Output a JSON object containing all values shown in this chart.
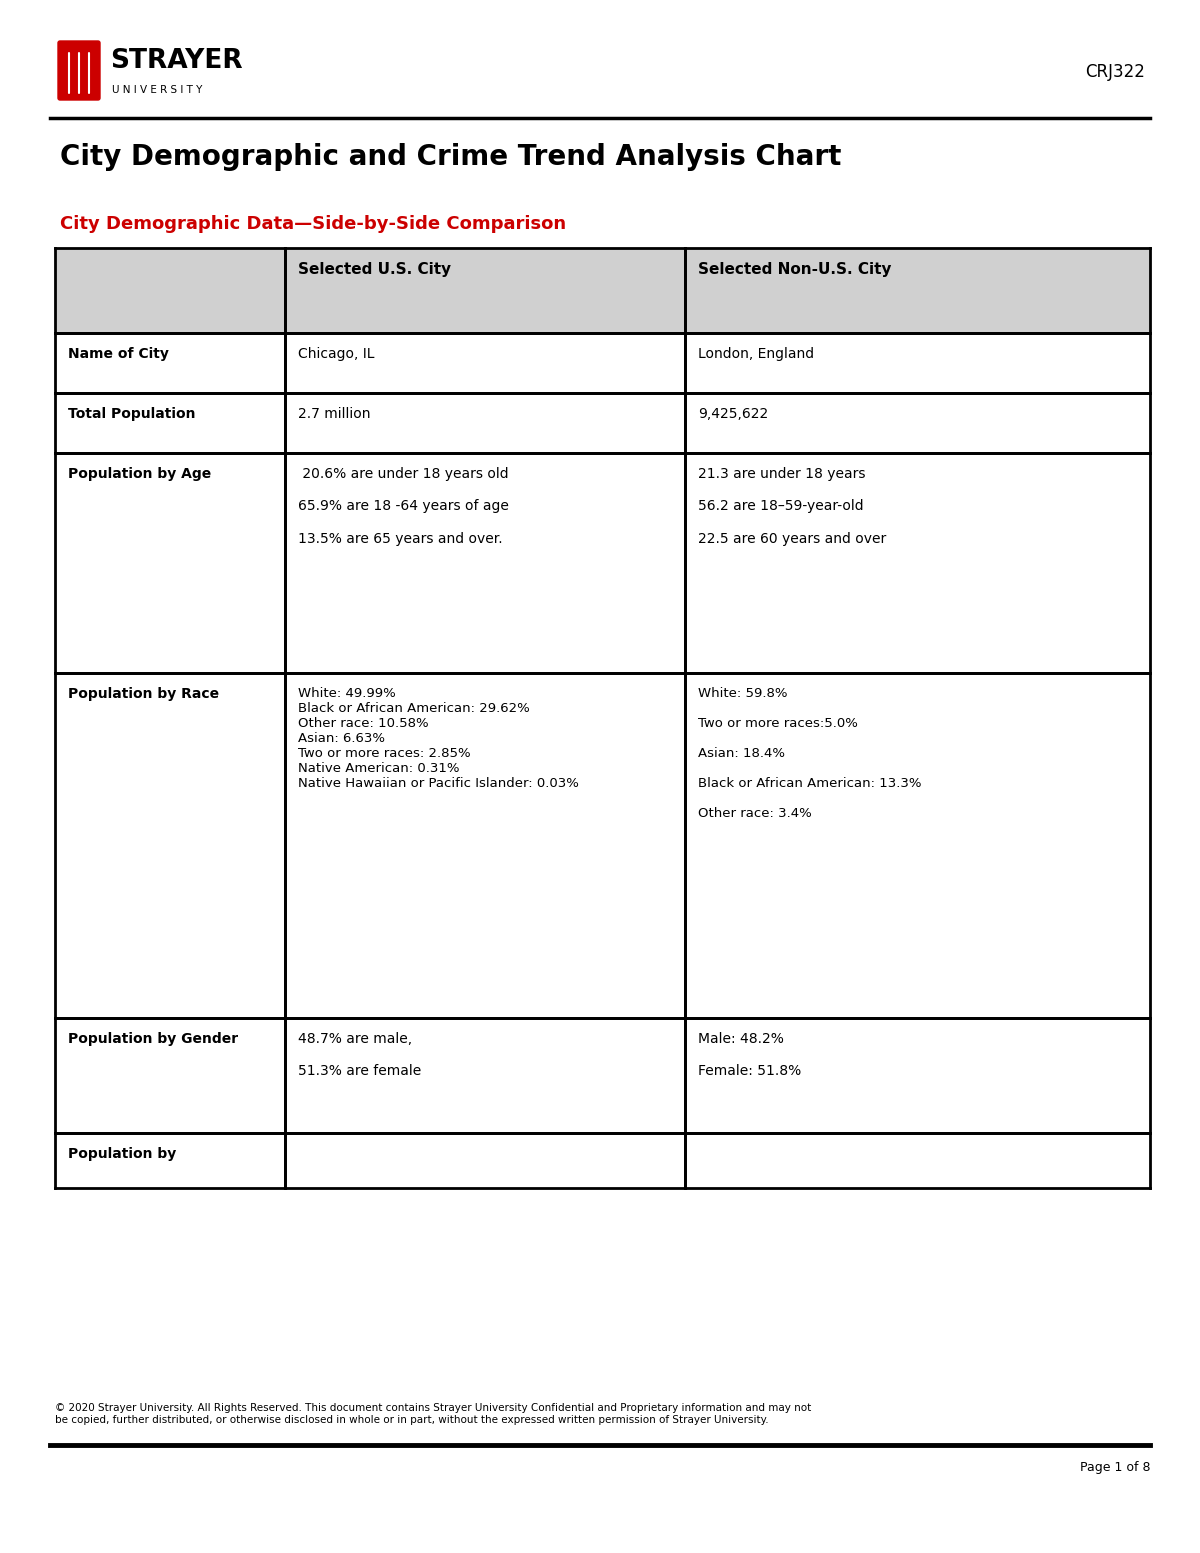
{
  "title": "City Demographic and Crime Trend Analysis Chart",
  "subtitle": "City Demographic Data—Side-by-Side Comparison",
  "course_code": "CRJ322",
  "header_row": [
    "",
    "Selected U.S. City",
    "Selected Non-U.S. City"
  ],
  "rows": [
    {
      "label": "Name of City",
      "us_city": "Chicago, IL",
      "non_us_city": "London, England"
    },
    {
      "label": "Total Population",
      "us_city": "2.7 million",
      "non_us_city": "9,425,622"
    },
    {
      "label": "Population by Age",
      "us_city": " 20.6% are under 18 years old\n\n65.9% are 18 -64 years of age\n\n13.5% are 65 years and over.",
      "non_us_city": "21.3 are under 18 years\n\n56.2 are 18–59-year-old\n\n22.5 are 60 years and over"
    },
    {
      "label": "Population by Race",
      "us_city": "White: 49.99%\nBlack or African American: 29.62%\nOther race: 10.58%\nAsian: 6.63%\nTwo or more races: 2.85%\nNative American: 0.31%\nNative Hawaiian or Pacific Islander: 0.03%",
      "non_us_city": "White: 59.8%\n\nTwo or more races:5.0%\n\nAsian: 18.4%\n\nBlack or African American: 13.3%\n\nOther race: 3.4%"
    },
    {
      "label": "Population by Gender",
      "us_city": "48.7% are male,\n\n51.3% are female",
      "non_us_city": "Male: 48.2%\n\nFemale: 51.8%"
    },
    {
      "label": "Population by",
      "us_city": "",
      "non_us_city": ""
    }
  ],
  "footer_text": "© 2020 Strayer University. All Rights Reserved. This document contains Strayer University Confidential and Proprietary information and may not\nbe copied, further distributed, or otherwise disclosed in whole or in part, without the expressed written permission of Strayer University.",
  "page_text": "Page 1 of 8",
  "header_bg": "#d0d0d0",
  "border_color": "#000000",
  "title_color": "#000000",
  "subtitle_color": "#cc0000",
  "logo_color_red": "#cc0000",
  "logo_color_black": "#000000",
  "bg_color": "#ffffff"
}
